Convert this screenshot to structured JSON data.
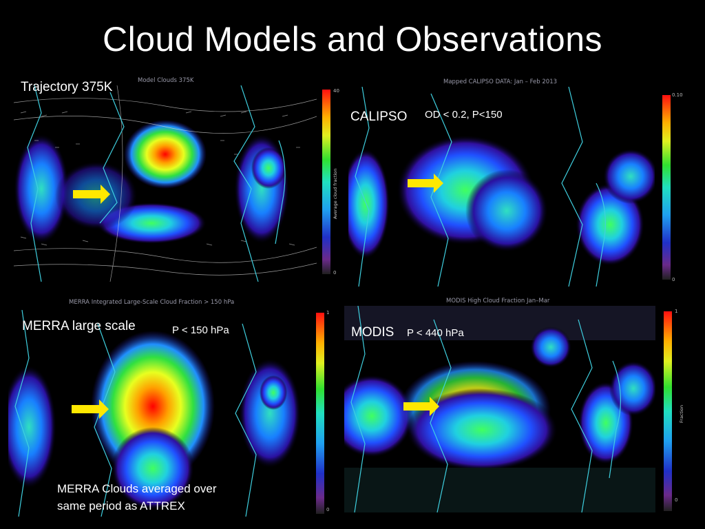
{
  "slide": {
    "title": "Cloud Models and Observations"
  },
  "panels": {
    "model": {
      "plot_title": "Model Clouds 375K",
      "label": "Trajectory 375K",
      "colorbar": {
        "max": "40",
        "min": "0",
        "unit": "Average cloud fraction"
      }
    },
    "calipso": {
      "plot_title": "Mapped CALIPSO DATA: Jan – Feb 2013",
      "label": "CALIPSO",
      "sublabel": "OD < 0.2, P<150",
      "colorbar": {
        "max": "0.10",
        "min": "0"
      }
    },
    "merra": {
      "plot_title": "MERRA Integrated Large-Scale Cloud Fraction > 150 hPa",
      "label": "MERRA large scale",
      "sublabel": "P < 150 hPa",
      "note_line1": "MERRA Clouds averaged over",
      "note_line2": "same period as ATTREX",
      "colorbar": {
        "max": "1",
        "min": "0"
      }
    },
    "modis": {
      "plot_title": "MODIS High Cloud Fraction Jan–Mar",
      "label": "MODIS",
      "sublabel": "P < 440 hPa",
      "colorbar": {
        "max": "1",
        "min": "0",
        "unit": "Fraction"
      }
    }
  },
  "colors": {
    "arrow": "#ffe800",
    "coast": "#3fd0e0",
    "background": "#000000"
  }
}
